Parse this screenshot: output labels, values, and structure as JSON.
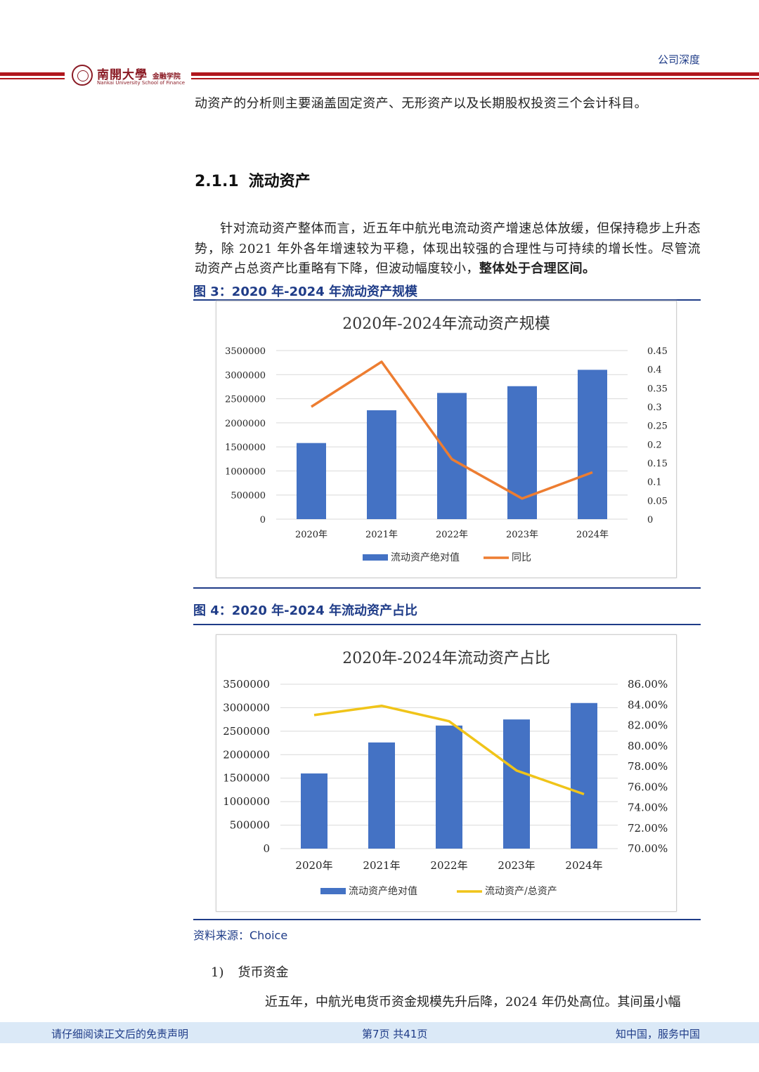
{
  "header": {
    "label": "公司深度",
    "logo": {
      "cn": "南開大學",
      "cn_sub": "金融学院",
      "en": "Nankai University  School of Finance"
    }
  },
  "body": {
    "intro_line": "动资产的分析则主要涵盖固定资产、无形资产以及长期股权投资三个会计科目。",
    "section": {
      "number": "2.1.1",
      "title": "流动资产"
    },
    "paragraph": "针对流动资产整体而言，近五年中航光电流动资产增速总体放缓，但保持稳步上升态势，除 2021 年外各年增速较为平稳，体现出较强的合理性与可持续的增长性。尽管流动资产占总资产比重略有下降，但波动幅度较小，",
    "paragraph_bold": "整体处于合理区间。"
  },
  "figure3": {
    "title": "图 3：2020 年-2024 年流动资产规模"
  },
  "figure4": {
    "title": "图 4：2020 年-2024 年流动资产占比"
  },
  "chart_data": [
    {
      "type": "bar",
      "title": "2020年-2024年流动资产规模",
      "categories": [
        "2020年",
        "2021年",
        "2022年",
        "2023年",
        "2024年"
      ],
      "y_ticks": [
        "3500000",
        "3000000",
        "2500000",
        "2000000",
        "1500000",
        "1000000",
        "500000",
        "0"
      ],
      "y2_ticks": [
        "0.45",
        "0.4",
        "0.35",
        "0.3",
        "0.25",
        "0.2",
        "0.15",
        "0.1",
        "0.05",
        "0"
      ],
      "ylim": [
        0,
        3500000
      ],
      "y2lim": [
        0,
        0.45
      ],
      "series": [
        {
          "name": "流动资产绝对值",
          "type": "bar",
          "axis": "left",
          "color": "#4472c4",
          "values": [
            1580000,
            2260000,
            2620000,
            2760000,
            3100000
          ]
        },
        {
          "name": "同比",
          "type": "line",
          "axis": "right",
          "color": "#ed7d31",
          "values": [
            0.3,
            0.42,
            0.16,
            0.055,
            0.125
          ]
        }
      ]
    },
    {
      "type": "bar",
      "title": "2020年-2024年流动资产占比",
      "categories": [
        "2020年",
        "2021年",
        "2022年",
        "2023年",
        "2024年"
      ],
      "y_ticks": [
        "3500000",
        "3000000",
        "2500000",
        "2000000",
        "1500000",
        "1000000",
        "500000",
        "0"
      ],
      "y2_ticks": [
        "86.00%",
        "84.00%",
        "82.00%",
        "80.00%",
        "78.00%",
        "76.00%",
        "74.00%",
        "72.00%",
        "70.00%"
      ],
      "ylim": [
        0,
        3500000
      ],
      "y2lim": [
        70,
        86
      ],
      "series": [
        {
          "name": "流动资产绝对值",
          "type": "bar",
          "axis": "left",
          "color": "#4472c4",
          "values": [
            1600000,
            2260000,
            2620000,
            2750000,
            3100000
          ]
        },
        {
          "name": "流动资产/总资产",
          "type": "line",
          "axis": "right",
          "color": "#f0c419",
          "values": [
            83.0,
            83.9,
            82.4,
            77.6,
            75.3
          ]
        }
      ]
    }
  ],
  "source": "资料来源：Choice",
  "list": {
    "item_label": "1)",
    "item_text": "货币资金"
  },
  "bottom_text": "近五年，中航光电货币资金规模先升后降，2024 年仍处高位。其间虽小幅",
  "footer": {
    "left": "请仔细阅读正文后的免责声明",
    "middle": "第7页 共41页",
    "right": "知中国，服务中国"
  }
}
